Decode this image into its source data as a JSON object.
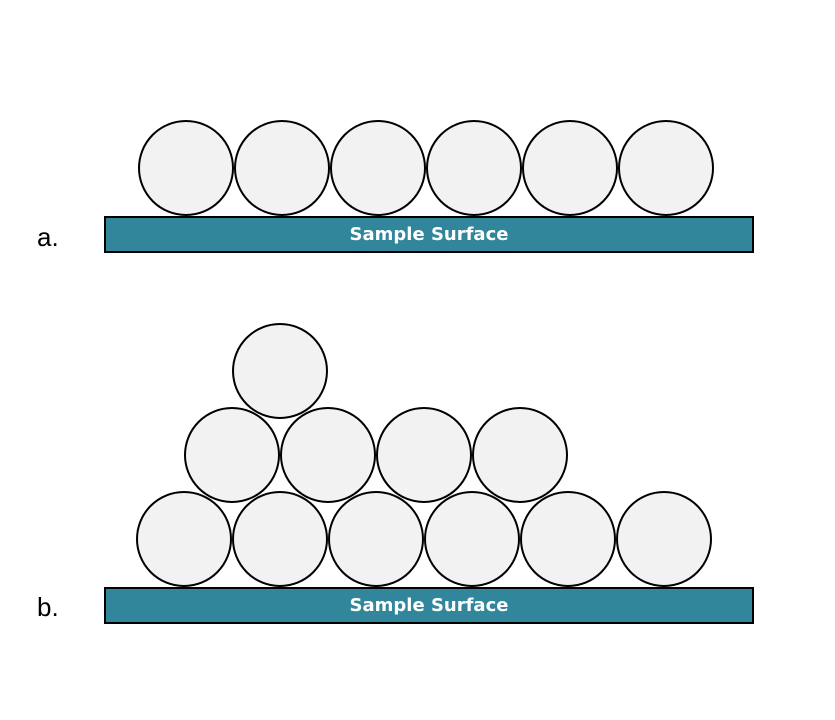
{
  "panels": [
    {
      "label": "a.",
      "surface_label": "Sample Surface",
      "layers": [
        6
      ]
    },
    {
      "label": "b.",
      "surface_label": "Sample Surface",
      "layers": [
        6,
        4,
        1
      ]
    }
  ],
  "colors": {
    "sphere_fill": "#f2f2f2",
    "sphere_stroke": "#000000",
    "surface_fill": "#31869b",
    "surface_text": "#ffffff"
  }
}
